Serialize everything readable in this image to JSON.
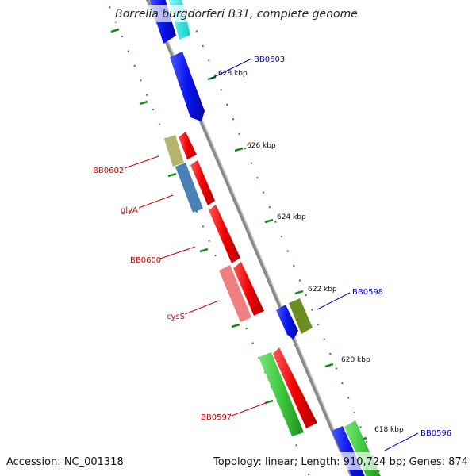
{
  "title": "Borrelia burgdorferi B31, complete genome",
  "footer": {
    "accession": "Accession: NC_001318",
    "summary": "Topology: linear; Length: 910,724 bp; Genes: 874"
  },
  "ticks": [
    "628 kbp",
    "626 kbp",
    "624 kbp",
    "622 kbp",
    "620 kbp",
    "618 kbp"
  ],
  "gene_labels": [
    "BB0603",
    "BB0602",
    "glyA",
    "BB0600",
    "cysS",
    "BB0598",
    "BB0597",
    "BB0596"
  ],
  "colors": {
    "backbone": "#8a8a8a",
    "ticks": "#1a8a1a",
    "forward_label": "#0000cc",
    "reverse_label": "#cc0000",
    "red": "#ee0000",
    "blue": "#0a14ee",
    "cyan": "#22e6e6",
    "khaki": "#b5b46a",
    "steelblue": "#4a80b8",
    "pink": "#f08080",
    "olive": "#6b8e23",
    "green": "#3cc83c"
  }
}
